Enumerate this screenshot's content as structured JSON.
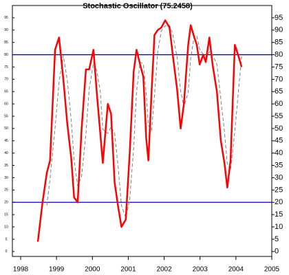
{
  "chart_data": {
    "type": "line",
    "title": "Stochastic Oscillator (75.2458)",
    "x": [
      1998.48,
      1998.61,
      1998.73,
      1998.82,
      1998.96,
      1999.07,
      1999.19,
      1999.3,
      1999.41,
      1999.49,
      1999.59,
      1999.7,
      1999.82,
      1999.91,
      2000.03,
      2000.12,
      2000.22,
      2000.29,
      2000.43,
      2000.52,
      2000.62,
      2000.72,
      2000.81,
      2000.93,
      2001.04,
      2001.15,
      2001.23,
      2001.33,
      2001.42,
      2001.5,
      2001.56,
      2001.65,
      2001.73,
      2001.82,
      2001.92,
      2002.03,
      2002.15,
      2002.24,
      2002.36,
      2002.46,
      2002.55,
      2002.67,
      2002.74,
      2002.84,
      2002.91,
      2002.99,
      2003.09,
      2003.16,
      2003.26,
      2003.35,
      2003.47,
      2003.58,
      2003.68,
      2003.76,
      2003.85,
      2003.97,
      2004.08,
      2004.16
    ],
    "series": [
      {
        "color": "#ff0000",
        "dashed": false,
        "width": 2.5,
        "values": [
          4,
          20,
          32,
          37,
          82,
          87,
          70,
          52,
          38,
          22,
          20,
          50,
          74,
          74,
          82,
          65,
          48,
          36,
          60,
          56,
          28,
          18,
          10,
          13,
          40,
          73,
          82,
          76,
          71,
          46,
          37,
          65,
          88,
          90,
          91,
          94,
          91,
          80,
          66,
          50,
          60,
          84,
          92,
          87,
          84,
          76,
          80,
          77,
          87,
          76,
          65,
          45,
          36,
          26,
          37,
          84,
          79,
          75
        ]
      },
      {
        "color": "#808080",
        "dashed": true,
        "width": 1,
        "values": [
          null,
          null,
          18.7,
          29.7,
          50.3,
          68.7,
          79.7,
          69.7,
          53.3,
          37.3,
          26.7,
          30.7,
          48,
          66,
          76.7,
          73.7,
          65,
          49.7,
          48,
          50.7,
          48,
          34,
          18.7,
          13.7,
          21,
          42,
          65,
          77,
          76.3,
          64.3,
          51.3,
          49.3,
          63.3,
          81,
          89.7,
          91.7,
          92,
          88.3,
          79,
          65.3,
          58.7,
          64.7,
          78.7,
          87.7,
          87.7,
          82.3,
          80,
          77.7,
          81.3,
          80,
          76,
          62,
          48.7,
          35.7,
          33,
          49,
          66.7,
          79.3
        ]
      }
    ],
    "hlines": [
      80,
      20
    ],
    "hline_color": "#0000cc",
    "xlim": [
      1997.77,
      2005.0
    ],
    "xticks": [
      1998,
      1999,
      2000,
      2001,
      2002,
      2003,
      2004,
      2005
    ],
    "ylim": [
      -2,
      100
    ],
    "yticks": [
      0,
      5,
      10,
      15,
      20,
      25,
      30,
      35,
      40,
      45,
      50,
      55,
      60,
      65,
      70,
      75,
      80,
      85,
      90,
      95
    ]
  }
}
